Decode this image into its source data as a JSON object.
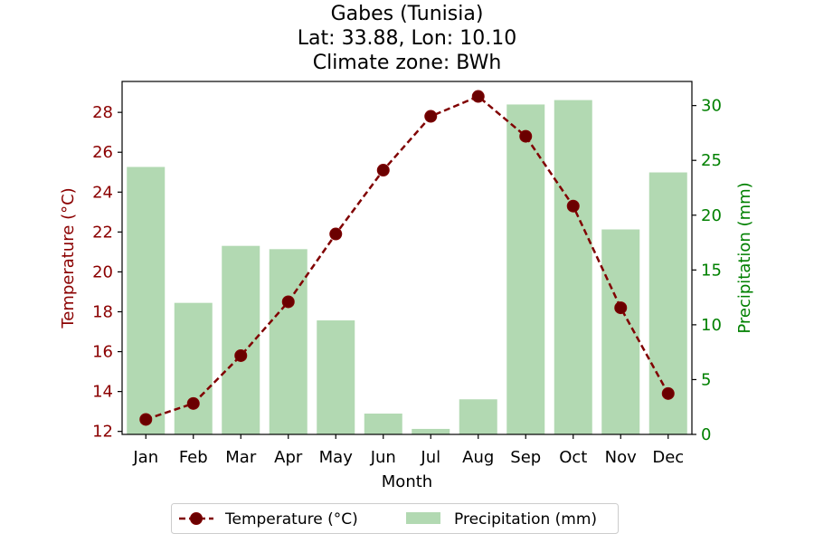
{
  "chart_data": {
    "type": "bar+line",
    "title": "Gabes (Tunisia)",
    "subtitle_lines": [
      "Lat: 33.88, Lon: 10.10",
      "Climate zone: BWh"
    ],
    "xlabel": "Month",
    "ylabel_left": "Temperature (°C)",
    "ylabel_right": "Precipitation (mm)",
    "categories": [
      "Jan",
      "Feb",
      "Mar",
      "Apr",
      "May",
      "Jun",
      "Jul",
      "Aug",
      "Sep",
      "Oct",
      "Nov",
      "Dec"
    ],
    "series": [
      {
        "name": "Temperature (°C)",
        "kind": "line",
        "axis": "left",
        "color": "#800000",
        "line_style": "dashed",
        "marker": "circle",
        "values": [
          12.6,
          13.4,
          15.8,
          18.5,
          21.9,
          25.1,
          27.8,
          28.8,
          26.8,
          23.3,
          18.2,
          13.9
        ]
      },
      {
        "name": "Precipitation (mm)",
        "kind": "bar",
        "axis": "right",
        "color": "#b2d9b2",
        "values": [
          24.4,
          12.0,
          17.2,
          16.9,
          10.4,
          1.9,
          0.5,
          3.2,
          30.1,
          30.5,
          18.7,
          23.9
        ]
      }
    ],
    "ylim_left": [
      11.85,
      29.55
    ],
    "yticks_left": [
      "12",
      "14",
      "16",
      "18",
      "20",
      "22",
      "24",
      "26",
      "28"
    ],
    "ylim_right": [
      0,
      32.2
    ],
    "yticks_right": [
      "0",
      "5",
      "10",
      "15",
      "20",
      "25",
      "30"
    ],
    "left_axis_color": "#8b0000",
    "right_axis_color": "#008000",
    "grid": false,
    "legend_placement": "bottom-center"
  }
}
